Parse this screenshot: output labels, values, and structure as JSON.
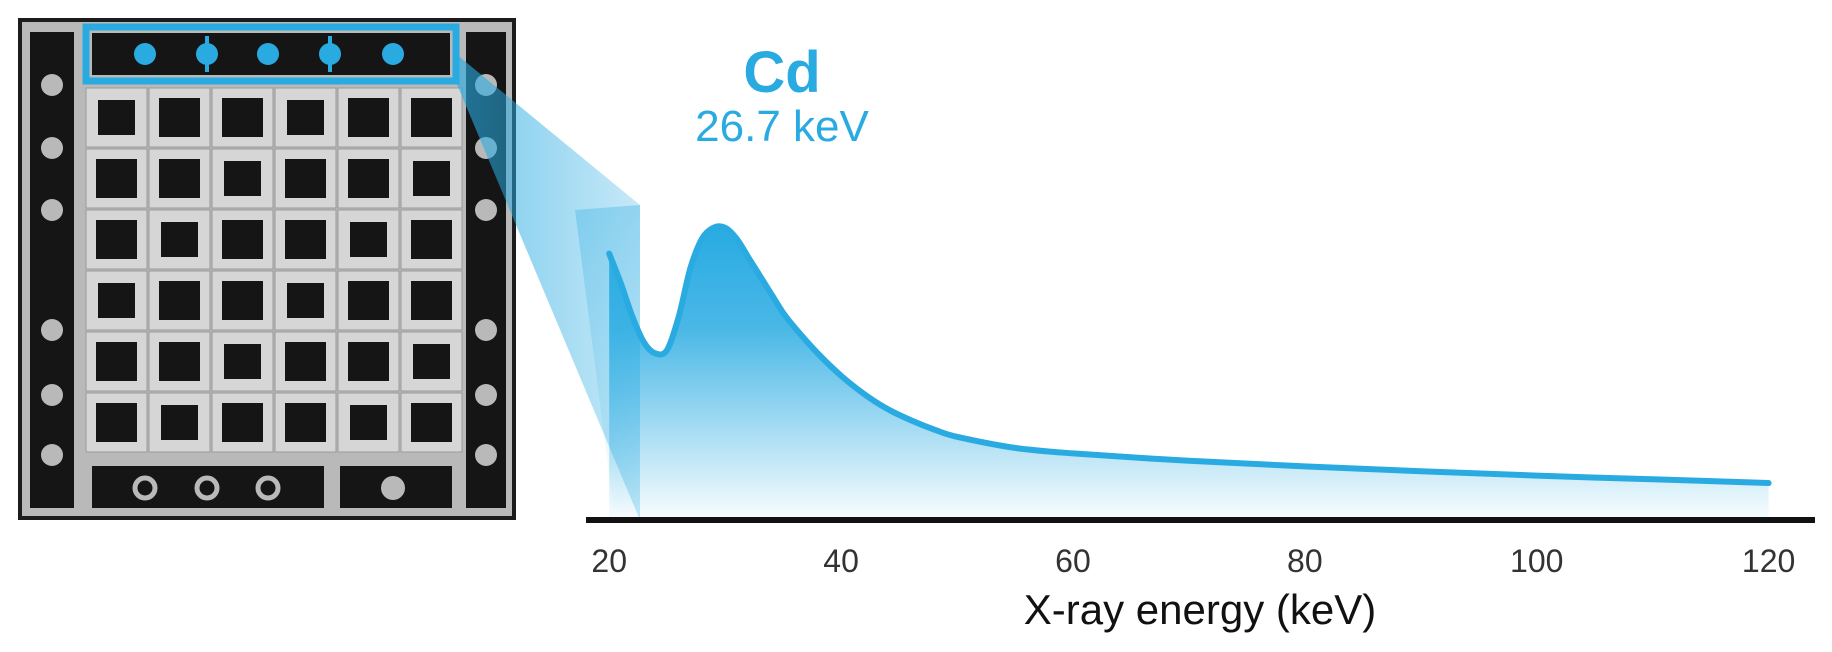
{
  "colors": {
    "accent": "#29abe2",
    "axis": "#111111",
    "sample_bg": "#1a1a1a",
    "sample_grid": "#bdbdbd"
  },
  "sample": {
    "label": "sample-radiograph",
    "rows": 6,
    "cols": 6
  },
  "chart_data": {
    "type": "area",
    "title": "",
    "xlabel": "X-ray energy (keV)",
    "ylabel": "",
    "xlim": [
      18,
      124
    ],
    "ylim": [
      0,
      1
    ],
    "xticks": [
      20,
      40,
      60,
      80,
      100,
      120
    ],
    "grid": false,
    "series": [
      {
        "name": "spectrum",
        "x": [
          20,
          21,
          22,
          23,
          24,
          25,
          26,
          27,
          28,
          29,
          30,
          31,
          32,
          33,
          34,
          35,
          36,
          38,
          40,
          42,
          44,
          46,
          48,
          50,
          55,
          60,
          70,
          80,
          90,
          100,
          110,
          120
        ],
        "y": [
          0.72,
          0.64,
          0.55,
          0.48,
          0.45,
          0.46,
          0.55,
          0.68,
          0.76,
          0.79,
          0.79,
          0.76,
          0.71,
          0.66,
          0.61,
          0.56,
          0.52,
          0.45,
          0.39,
          0.34,
          0.3,
          0.27,
          0.245,
          0.225,
          0.195,
          0.18,
          0.16,
          0.145,
          0.132,
          0.12,
          0.11,
          0.1
        ]
      }
    ],
    "annotations": [
      {
        "element": "Cd",
        "energy_text": "26.7 keV",
        "x": 26.7
      }
    ]
  }
}
